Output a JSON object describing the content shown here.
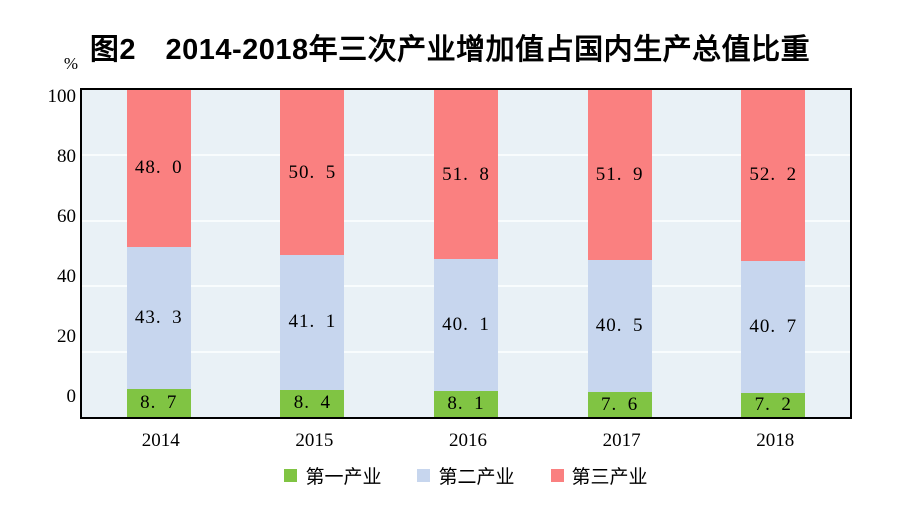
{
  "chart_data": {
    "type": "bar",
    "stacked": true,
    "title": "图2　2014-2018年三次产业增加值占国内生产总值比重",
    "unit_label": "%",
    "categories": [
      "2014",
      "2015",
      "2016",
      "2017",
      "2018"
    ],
    "series": [
      {
        "key": "primary-industry",
        "name": "第一产业",
        "color": "#80c443",
        "values": [
          8.7,
          8.4,
          8.1,
          7.6,
          7.2
        ]
      },
      {
        "key": "secondary-industry",
        "name": "第二产业",
        "color": "#c7d6ee",
        "values": [
          43.3,
          41.1,
          40.1,
          40.5,
          40.7
        ]
      },
      {
        "key": "tertiary-industry",
        "name": "第三产业",
        "color": "#fa8080",
        "values": [
          48.0,
          50.5,
          51.8,
          51.9,
          52.2
        ]
      }
    ],
    "ylim": [
      0,
      100
    ],
    "yticks": [
      0,
      20,
      40,
      60,
      80,
      100
    ],
    "grid": true,
    "legend_position": "bottom",
    "colors": {
      "plot_background": "#e9f1f6",
      "gridline": "#f8fcfd",
      "axis": "#000000",
      "text": "#000000"
    }
  }
}
